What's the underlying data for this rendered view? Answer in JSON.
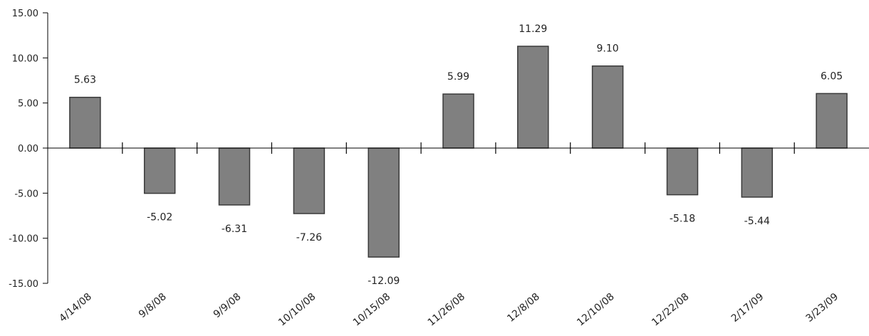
{
  "chart_data": {
    "type": "bar",
    "title": "",
    "xlabel": "",
    "ylabel": "",
    "categories": [
      "4/14/08",
      "9/8/08",
      "9/9/08",
      "10/10/08",
      "10/15/08",
      "11/26/08",
      "12/8/08",
      "12/10/08",
      "12/22/08",
      "2/17/09",
      "3/23/09"
    ],
    "values": [
      5.63,
      -5.02,
      -6.31,
      -7.26,
      -12.09,
      5.99,
      11.29,
      9.1,
      -5.18,
      -5.44,
      6.05
    ],
    "value_labels": [
      "5.63",
      "-5.02",
      "-6.31",
      "-7.26",
      "-12.09",
      "5.99",
      "11.29",
      "9.10",
      "-5.18",
      "-5.44",
      "6.05"
    ],
    "ylim": [
      -15,
      15
    ],
    "y_ticks": [
      15,
      10,
      5,
      0,
      -5,
      -10,
      -15
    ],
    "y_tick_labels": [
      "15.00",
      "10.00",
      "5.00",
      "0.00",
      "-5.00",
      "-10.00",
      "-15.00"
    ],
    "grid": false,
    "legend": "none",
    "colors": {
      "bar": "#808080",
      "bar_edge": "#3a3a3a",
      "axis": "#000000"
    }
  }
}
